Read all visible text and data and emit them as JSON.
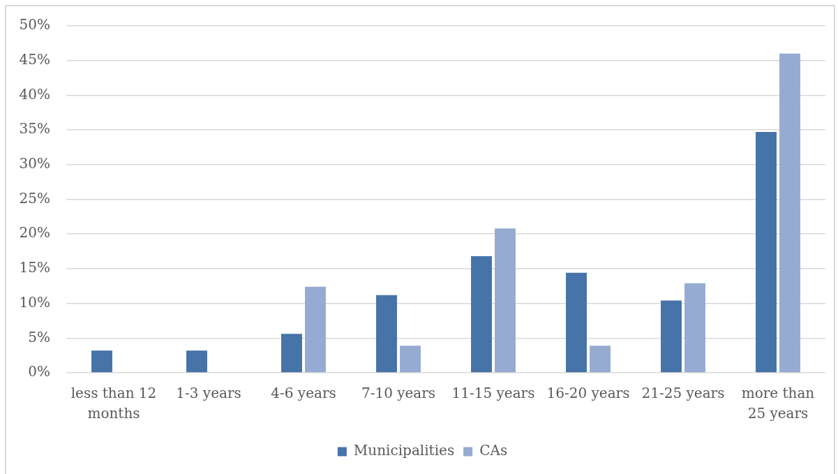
{
  "chart_data": {
    "type": "bar",
    "categories": [
      "less than 12 months",
      "1-3 years",
      "4-6 years",
      "7-10 years",
      "11-15 years",
      "16-20 years",
      "21-25 years",
      "more than 25 years"
    ],
    "series": [
      {
        "name": "Municipalities",
        "color": "#4673a8",
        "values": [
          3.2,
          3.2,
          5.6,
          11.2,
          16.8,
          14.4,
          10.4,
          34.7
        ]
      },
      {
        "name": "CAs",
        "color": "#95abd1",
        "values": [
          0,
          0,
          12.4,
          3.9,
          20.8,
          3.9,
          12.9,
          46.0
        ]
      }
    ],
    "ylim": [
      0,
      50
    ],
    "yticks": [
      {
        "value": 0,
        "label": "0%"
      },
      {
        "value": 5,
        "label": "5%"
      },
      {
        "value": 10,
        "label": "10%"
      },
      {
        "value": 15,
        "label": "15%"
      },
      {
        "value": 20,
        "label": "20%"
      },
      {
        "value": 25,
        "label": "25%"
      },
      {
        "value": 30,
        "label": "30%"
      },
      {
        "value": 35,
        "label": "35%"
      },
      {
        "value": 40,
        "label": "40%"
      },
      {
        "value": 45,
        "label": "45%"
      },
      {
        "value": 50,
        "label": "50%"
      }
    ],
    "grid": "y",
    "legend": "bottom"
  }
}
